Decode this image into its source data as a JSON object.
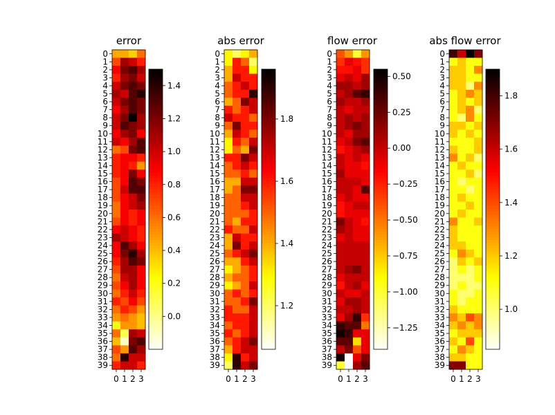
{
  "chart_data": [
    {
      "type": "heatmap",
      "title": "error",
      "colormap": "hot_r",
      "vmin": -0.2,
      "vmax": 1.5,
      "row_labels": [
        "0",
        "1",
        "2",
        "3",
        "4",
        "5",
        "6",
        "7",
        "8",
        "9",
        "10",
        "11",
        "12",
        "13",
        "14",
        "15",
        "16",
        "17",
        "18",
        "19",
        "20",
        "21",
        "22",
        "23",
        "24",
        "25",
        "26",
        "27",
        "28",
        "29",
        "30",
        "31",
        "32",
        "33",
        "34",
        "35",
        "36",
        "37",
        "38",
        "39"
      ],
      "col_labels": [
        "0",
        "1",
        "2",
        "3"
      ],
      "colorbar_ticks": [
        "0.0",
        "0.2",
        "0.4",
        "0.6",
        "0.8",
        "1.0",
        "1.2",
        "1.4"
      ],
      "values": [
        [
          0.45,
          0.45,
          0.35,
          0.6
        ],
        [
          0.7,
          1.1,
          1.0,
          0.8
        ],
        [
          0.9,
          1.2,
          1.3,
          1.1
        ],
        [
          0.8,
          1.1,
          1.2,
          1.0
        ],
        [
          1.0,
          1.2,
          1.3,
          1.2
        ],
        [
          1.1,
          1.0,
          1.3,
          1.4
        ],
        [
          1.0,
          1.2,
          1.3,
          1.2
        ],
        [
          0.9,
          1.1,
          1.3,
          1.2
        ],
        [
          1.0,
          1.2,
          1.5,
          1.1
        ],
        [
          1.0,
          1.3,
          1.2,
          1.1
        ],
        [
          0.9,
          1.1,
          1.2,
          0.9
        ],
        [
          1.0,
          0.9,
          1.1,
          1.3
        ],
        [
          0.6,
          0.7,
          1.2,
          1.3
        ],
        [
          0.8,
          0.9,
          0.9,
          0.8
        ],
        [
          0.8,
          0.9,
          0.8,
          0.5
        ],
        [
          0.8,
          0.9,
          1.2,
          0.9
        ],
        [
          0.7,
          0.9,
          1.3,
          1.2
        ],
        [
          0.7,
          1.0,
          1.3,
          1.3
        ],
        [
          0.7,
          0.9,
          1.0,
          1.2
        ],
        [
          0.6,
          0.9,
          1.0,
          1.1
        ],
        [
          0.6,
          0.9,
          0.8,
          0.9
        ],
        [
          0.7,
          0.9,
          0.8,
          0.9
        ],
        [
          0.9,
          1.0,
          0.9,
          0.8
        ],
        [
          1.1,
          1.0,
          0.9,
          0.8
        ],
        [
          0.9,
          1.3,
          1.1,
          0.9
        ],
        [
          0.9,
          1.2,
          1.4,
          1.1
        ],
        [
          0.8,
          1.1,
          1.3,
          1.2
        ],
        [
          0.7,
          1.1,
          1.1,
          0.9
        ],
        [
          0.6,
          1.0,
          1.1,
          0.9
        ],
        [
          0.7,
          0.9,
          1.1,
          0.9
        ],
        [
          0.6,
          0.8,
          1.0,
          0.8
        ],
        [
          0.8,
          0.7,
          0.9,
          0.7
        ],
        [
          0.6,
          0.8,
          0.7,
          0.5
        ],
        [
          0.5,
          0.6,
          0.5,
          0.4
        ],
        [
          0.2,
          0.5,
          0.5,
          0.4
        ],
        [
          0.6,
          0.1,
          1.1,
          1.0
        ],
        [
          0.4,
          -0.1,
          1.2,
          1.3
        ],
        [
          0.7,
          0.5,
          1.3,
          1.1
        ],
        [
          0.6,
          1.4,
          1.0,
          1.0
        ],
        [
          0.8,
          1.0,
          1.0,
          0.8
        ]
      ]
    },
    {
      "type": "heatmap",
      "title": "abs error",
      "colormap": "hot_r",
      "vmin": 1.06,
      "vmax": 1.96,
      "row_labels": [
        "0",
        "1",
        "2",
        "3",
        "4",
        "5",
        "6",
        "7",
        "8",
        "9",
        "10",
        "11",
        "12",
        "13",
        "14",
        "15",
        "16",
        "17",
        "18",
        "19",
        "20",
        "21",
        "22",
        "23",
        "24",
        "25",
        "26",
        "27",
        "28",
        "29",
        "30",
        "31",
        "32",
        "33",
        "34",
        "35",
        "36",
        "37",
        "38",
        "39"
      ],
      "col_labels": [
        "0",
        "1",
        "2",
        "3"
      ],
      "colorbar_ticks": [
        "1.2",
        "1.4",
        "1.6",
        "1.8"
      ],
      "values": [
        [
          1.3,
          1.2,
          1.3,
          1.4
        ],
        [
          1.3,
          1.6,
          1.5,
          1.2
        ],
        [
          1.4,
          1.6,
          1.6,
          1.3
        ],
        [
          1.4,
          1.7,
          1.6,
          1.6
        ],
        [
          1.5,
          1.6,
          1.7,
          1.6
        ],
        [
          1.5,
          1.6,
          1.6,
          1.9
        ],
        [
          1.4,
          1.5,
          1.8,
          1.7
        ],
        [
          1.6,
          1.5,
          1.6,
          1.7
        ],
        [
          1.7,
          1.6,
          1.6,
          1.5
        ],
        [
          1.5,
          1.8,
          1.6,
          1.6
        ],
        [
          1.4,
          1.7,
          1.6,
          1.5
        ],
        [
          1.3,
          1.6,
          1.5,
          1.7
        ],
        [
          1.3,
          1.5,
          1.4,
          1.8
        ],
        [
          1.6,
          1.6,
          1.8,
          1.7
        ],
        [
          1.5,
          1.6,
          1.7,
          1.6
        ],
        [
          1.5,
          1.5,
          1.6,
          1.5
        ],
        [
          1.4,
          1.4,
          1.7,
          1.7
        ],
        [
          1.4,
          1.5,
          1.8,
          1.8
        ],
        [
          1.5,
          1.5,
          1.7,
          1.7
        ],
        [
          1.5,
          1.5,
          1.6,
          1.7
        ],
        [
          1.5,
          1.5,
          1.5,
          1.6
        ],
        [
          1.5,
          1.4,
          1.6,
          1.6
        ],
        [
          1.6,
          1.5,
          1.5,
          1.7
        ],
        [
          1.4,
          1.7,
          1.6,
          1.6
        ],
        [
          1.4,
          1.8,
          1.6,
          1.7
        ],
        [
          1.5,
          1.6,
          1.7,
          1.8
        ],
        [
          1.4,
          1.4,
          1.6,
          1.7
        ],
        [
          1.3,
          1.4,
          1.5,
          1.6
        ],
        [
          1.4,
          1.5,
          1.5,
          1.6
        ],
        [
          1.3,
          1.4,
          1.5,
          1.7
        ],
        [
          1.5,
          1.6,
          1.5,
          1.6
        ],
        [
          1.5,
          1.5,
          1.6,
          1.8
        ],
        [
          1.6,
          1.5,
          1.5,
          1.7
        ],
        [
          1.6,
          1.6,
          1.6,
          1.7
        ],
        [
          1.5,
          1.6,
          1.6,
          1.7
        ],
        [
          1.6,
          1.5,
          1.6,
          1.7
        ],
        [
          1.5,
          1.6,
          1.7,
          1.8
        ],
        [
          1.4,
          1.6,
          1.7,
          1.7
        ],
        [
          1.3,
          1.9,
          1.6,
          1.7
        ],
        [
          1.2,
          1.9,
          1.7,
          1.8
        ]
      ]
    },
    {
      "type": "heatmap",
      "title": "flow error",
      "colormap": "hot_r",
      "vmin": -1.4,
      "vmax": 0.55,
      "row_labels": [
        "0",
        "1",
        "2",
        "3",
        "4",
        "5",
        "6",
        "7",
        "8",
        "9",
        "10",
        "11",
        "12",
        "13",
        "14",
        "15",
        "16",
        "17",
        "18",
        "19",
        "20",
        "21",
        "22",
        "23",
        "24",
        "25",
        "26",
        "27",
        "28",
        "29",
        "30",
        "31",
        "32",
        "33",
        "34",
        "35",
        "36",
        "37",
        "38",
        "39"
      ],
      "col_labels": [
        "0",
        "1",
        "2",
        "3"
      ],
      "colorbar_ticks": [
        "−1.25",
        "−1.00",
        "−0.75",
        "−0.50",
        "−0.25",
        "0.00",
        "0.25",
        "0.50"
      ],
      "values": [
        [
          -0.4,
          -0.6,
          -1.0,
          -0.6
        ],
        [
          -0.3,
          -0.1,
          -0.2,
          -0.3
        ],
        [
          -0.2,
          -0.2,
          -0.1,
          -0.3
        ],
        [
          -0.1,
          0.0,
          -0.1,
          0.1
        ],
        [
          0.1,
          0.1,
          0.0,
          0.1
        ],
        [
          0.0,
          0.1,
          0.3,
          0.4
        ],
        [
          0.1,
          0.0,
          0.0,
          0.1
        ],
        [
          0.0,
          -0.1,
          0.0,
          0.0
        ],
        [
          0.0,
          0.1,
          0.0,
          0.1
        ],
        [
          0.0,
          0.1,
          0.2,
          0.1
        ],
        [
          0.0,
          -0.1,
          0.1,
          0.1
        ],
        [
          -0.1,
          0.0,
          0.2,
          0.3
        ],
        [
          -0.2,
          -0.1,
          0.0,
          0.1
        ],
        [
          0.0,
          -0.1,
          0.0,
          -0.1
        ],
        [
          0.0,
          -0.1,
          -0.1,
          -0.2
        ],
        [
          0.1,
          -0.1,
          -0.1,
          -0.1
        ],
        [
          0.0,
          0.0,
          0.0,
          -0.1
        ],
        [
          0.0,
          0.0,
          -0.1,
          0.3
        ],
        [
          -0.1,
          0.0,
          -0.1,
          -0.1
        ],
        [
          -0.2,
          -0.1,
          0.0,
          0.0
        ],
        [
          -0.2,
          -0.1,
          -0.1,
          -0.1
        ],
        [
          0.2,
          0.0,
          -0.1,
          -0.2
        ],
        [
          0.1,
          0.0,
          -0.1,
          -0.1
        ],
        [
          -0.1,
          0.0,
          -0.1,
          -0.1
        ],
        [
          0.0,
          0.0,
          0.0,
          0.0
        ],
        [
          0.0,
          0.0,
          0.0,
          0.0
        ],
        [
          0.0,
          0.0,
          0.0,
          0.0
        ],
        [
          0.0,
          0.1,
          0.2,
          0.0
        ],
        [
          -0.1,
          0.0,
          0.0,
          0.0
        ],
        [
          -0.2,
          0.0,
          0.1,
          -0.1
        ],
        [
          0.0,
          -0.1,
          -0.1,
          0.0
        ],
        [
          -0.1,
          0.1,
          0.1,
          0.0
        ],
        [
          0.0,
          0.0,
          0.1,
          0.0
        ],
        [
          -0.1,
          0.1,
          0.4,
          -0.3
        ],
        [
          0.4,
          0.3,
          0.3,
          -0.5
        ],
        [
          0.5,
          0.4,
          -0.1,
          -0.1
        ],
        [
          0.3,
          0.3,
          -0.8,
          -0.1
        ],
        [
          0.0,
          0.2,
          -0.4,
          -0.1
        ],
        [
          0.5,
          -1.4,
          -0.1,
          0.2
        ],
        [
          -1.0,
          -1.4,
          0.1,
          0.3
        ]
      ]
    },
    {
      "type": "heatmap",
      "title": "abs flow error",
      "colormap": "hot_r",
      "vmin": 0.85,
      "vmax": 1.9,
      "row_labels": [
        "0",
        "1",
        "2",
        "3",
        "4",
        "5",
        "6",
        "7",
        "8",
        "9",
        "10",
        "11",
        "12",
        "13",
        "14",
        "15",
        "16",
        "17",
        "18",
        "19",
        "20",
        "21",
        "22",
        "23",
        "24",
        "25",
        "26",
        "27",
        "28",
        "29",
        "30",
        "31",
        "32",
        "33",
        "34",
        "35",
        "36",
        "37",
        "38",
        "39"
      ],
      "col_labels": [
        "0",
        "1",
        "2",
        "3"
      ],
      "colorbar_ticks": [
        "1.0",
        "1.2",
        "1.4",
        "1.6",
        "1.8"
      ],
      "values": [
        [
          1.8,
          1.6,
          1.9,
          1.7
        ],
        [
          1.1,
          1.2,
          1.1,
          1.1
        ],
        [
          1.2,
          1.2,
          1.1,
          1.3
        ],
        [
          1.2,
          1.2,
          1.1,
          1.1
        ],
        [
          1.2,
          1.2,
          1.0,
          1.3
        ],
        [
          1.1,
          1.2,
          1.3,
          1.2
        ],
        [
          1.1,
          1.2,
          1.1,
          1.2
        ],
        [
          1.1,
          1.2,
          1.3,
          1.0
        ],
        [
          1.1,
          1.0,
          1.3,
          1.1
        ],
        [
          1.2,
          1.2,
          1.1,
          1.2
        ],
        [
          1.2,
          1.1,
          1.2,
          1.1
        ],
        [
          1.1,
          1.1,
          1.1,
          1.2
        ],
        [
          1.2,
          1.1,
          1.1,
          1.2
        ],
        [
          1.3,
          1.1,
          1.2,
          1.0
        ],
        [
          1.1,
          1.2,
          1.1,
          1.1
        ],
        [
          1.1,
          1.1,
          1.2,
          1.0
        ],
        [
          1.1,
          1.0,
          1.1,
          1.1
        ],
        [
          1.1,
          1.1,
          1.0,
          1.1
        ],
        [
          1.1,
          1.2,
          1.1,
          1.1
        ],
        [
          1.1,
          1.1,
          1.2,
          1.1
        ],
        [
          1.1,
          1.2,
          1.1,
          1.1
        ],
        [
          1.3,
          1.1,
          1.1,
          1.2
        ],
        [
          1.2,
          1.1,
          1.1,
          1.1
        ],
        [
          1.2,
          1.1,
          1.1,
          1.1
        ],
        [
          1.2,
          1.2,
          1.1,
          1.1
        ],
        [
          1.1,
          1.3,
          1.2,
          1.1
        ],
        [
          1.0,
          1.2,
          1.1,
          1.2
        ],
        [
          1.0,
          1.1,
          1.0,
          1.1
        ],
        [
          1.0,
          1.0,
          1.0,
          1.1
        ],
        [
          1.0,
          1.1,
          1.0,
          1.0
        ],
        [
          1.1,
          1.0,
          1.0,
          1.1
        ],
        [
          1.1,
          1.0,
          1.1,
          1.1
        ],
        [
          1.2,
          1.1,
          1.1,
          1.1
        ],
        [
          1.3,
          1.2,
          1.4,
          1.3
        ],
        [
          1.2,
          1.3,
          1.2,
          1.3
        ],
        [
          1.1,
          1.2,
          1.2,
          1.2
        ],
        [
          1.2,
          1.1,
          1.4,
          1.1
        ],
        [
          1.1,
          1.3,
          1.2,
          1.1
        ],
        [
          1.2,
          1.2,
          1.1,
          1.1
        ],
        [
          1.7,
          1.7,
          1.1,
          1.1
        ]
      ]
    }
  ]
}
